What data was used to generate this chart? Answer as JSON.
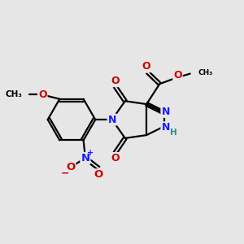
{
  "background_color": "#e6e6e6",
  "bond_color": "#000000",
  "bond_width": 1.6,
  "atom_colors": {
    "C": "#000000",
    "N": "#1a1aff",
    "O": "#cc0000",
    "H": "#2e8b8b"
  },
  "font_size": 9.0,
  "fig_width": 3.0,
  "fig_height": 3.0,
  "dpi": 100
}
